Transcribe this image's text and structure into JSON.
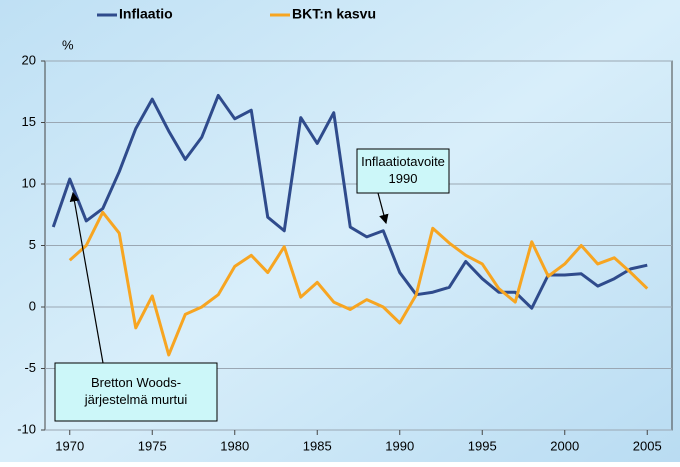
{
  "chart_data": {
    "type": "line",
    "y_unit": "%",
    "x": [
      1969,
      1970,
      1971,
      1972,
      1973,
      1974,
      1975,
      1976,
      1977,
      1978,
      1979,
      1980,
      1981,
      1982,
      1983,
      1984,
      1985,
      1986,
      1987,
      1988,
      1989,
      1990,
      1991,
      1992,
      1993,
      1994,
      1995,
      1996,
      1997,
      1998,
      1999,
      2000,
      2001,
      2002,
      2003,
      2004,
      2005
    ],
    "series": [
      {
        "name": "Inflaatio",
        "color": "#2f4b8c",
        "values": [
          6.5,
          10.4,
          7,
          8,
          11,
          14.5,
          16.9,
          14.3,
          12,
          13.8,
          17.2,
          15.3,
          16,
          7.3,
          6.2,
          15.4,
          13.3,
          15.8,
          6.5,
          5.7,
          6.2,
          2.8,
          1,
          1.2,
          1.6,
          3.7,
          2.3,
          1.2,
          1.2,
          -0.1,
          2.6,
          2.6,
          2.7,
          1.7,
          2.3,
          3.1,
          3.4
        ]
      },
      {
        "name": "BKT:n kasvu",
        "color": "#f7a521",
        "values": [
          null,
          3.8,
          5,
          7.7,
          6,
          -1.7,
          0.9,
          -3.9,
          -0.6,
          0,
          1,
          3.3,
          4.2,
          2.8,
          4.9,
          0.8,
          2,
          0.4,
          -0.2,
          0.6,
          0,
          -1.3,
          1,
          6.4,
          5.2,
          4.2,
          3.5,
          1.5,
          0.4,
          5.3,
          2.5,
          3.5,
          5,
          3.5,
          4,
          2.8,
          1.5
        ]
      }
    ],
    "xlim": [
      1968.5,
      2006.5
    ],
    "xticks": [
      1970,
      1975,
      1980,
      1985,
      1990,
      1995,
      2000,
      2005
    ],
    "ylim": [
      -10,
      20
    ],
    "yticks": [
      -10,
      -5,
      0,
      5,
      10,
      15,
      20
    ],
    "grid": true,
    "annotations": [
      {
        "lines": [
          "Inflaatiotavoite",
          "1990"
        ]
      },
      {
        "lines": [
          "Bretton Woods-",
          "järjestelmä murtui"
        ]
      }
    ]
  }
}
